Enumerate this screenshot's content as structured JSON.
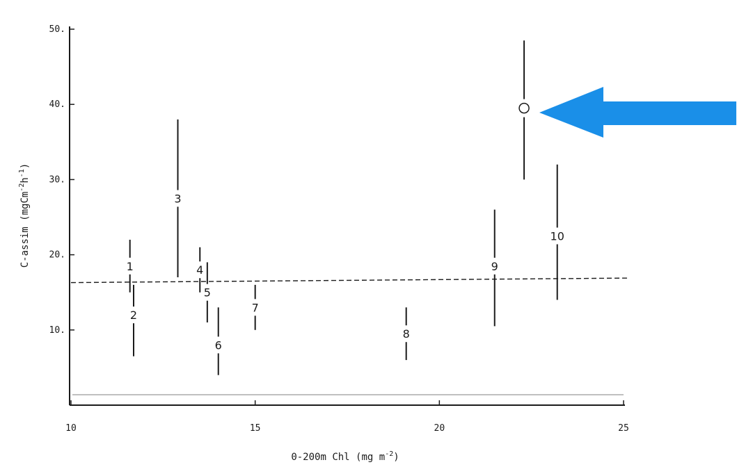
{
  "chart_data": {
    "type": "scatter",
    "title": "",
    "xlabel": "0-200m Chl (mg m",
    "xlabel_sup": "-2",
    "xlabel_tail": ")",
    "ylabel": "C-assim (mgCm",
    "ylabel_sup": "-2",
    "ylabel_mid": "h",
    "ylabel_sup2": "-1",
    "ylabel_tail": ")",
    "xlim": [
      10,
      25
    ],
    "ylim": [
      0,
      50
    ],
    "x_ticks": [
      10,
      15,
      20,
      25
    ],
    "x_tick_labels": [
      "10",
      "15",
      "20",
      "25"
    ],
    "y_ticks": [
      10,
      20,
      30,
      40,
      50
    ],
    "y_tick_labels": [
      "10.",
      "20.",
      "30.",
      "40.",
      "50."
    ],
    "grid": false,
    "reference_line": {
      "style": "dashed",
      "y_at_xmin": 16.3,
      "y_at_xmax": 16.9
    },
    "points": [
      {
        "label": "1",
        "x": 11.6,
        "y": 18.5,
        "y_low": 15.0,
        "y_high": 22.0
      },
      {
        "label": "2",
        "x": 11.7,
        "y": 12.0,
        "y_low": 6.5,
        "y_high": 16.0
      },
      {
        "label": "3",
        "x": 12.9,
        "y": 27.5,
        "y_low": 17.0,
        "y_high": 38.0
      },
      {
        "label": "4",
        "x": 13.5,
        "y": 18.0,
        "y_low": 15.0,
        "y_high": 21.0
      },
      {
        "label": "5",
        "x": 13.7,
        "y": 15.0,
        "y_low": 11.0,
        "y_high": 19.0
      },
      {
        "label": "6",
        "x": 14.0,
        "y": 8.0,
        "y_low": 4.0,
        "y_high": 13.0
      },
      {
        "label": "7",
        "x": 15.0,
        "y": 13.0,
        "y_low": 10.0,
        "y_high": 16.0
      },
      {
        "label": "8",
        "x": 19.1,
        "y": 9.5,
        "y_low": 6.0,
        "y_high": 13.0
      },
      {
        "label": "9",
        "x": 21.5,
        "y": 18.5,
        "y_low": 10.5,
        "y_high": 26.0
      },
      {
        "label": "10",
        "x": 23.2,
        "y": 22.5,
        "y_low": 14.0,
        "y_high": 32.0
      },
      {
        "label": "O",
        "x": 22.3,
        "y": 39.5,
        "y_low": 30.0,
        "y_high": 48.5,
        "highlighted": true
      }
    ],
    "annotation": {
      "type": "arrow",
      "color": "#1a8fe8",
      "points_to": "O"
    }
  }
}
